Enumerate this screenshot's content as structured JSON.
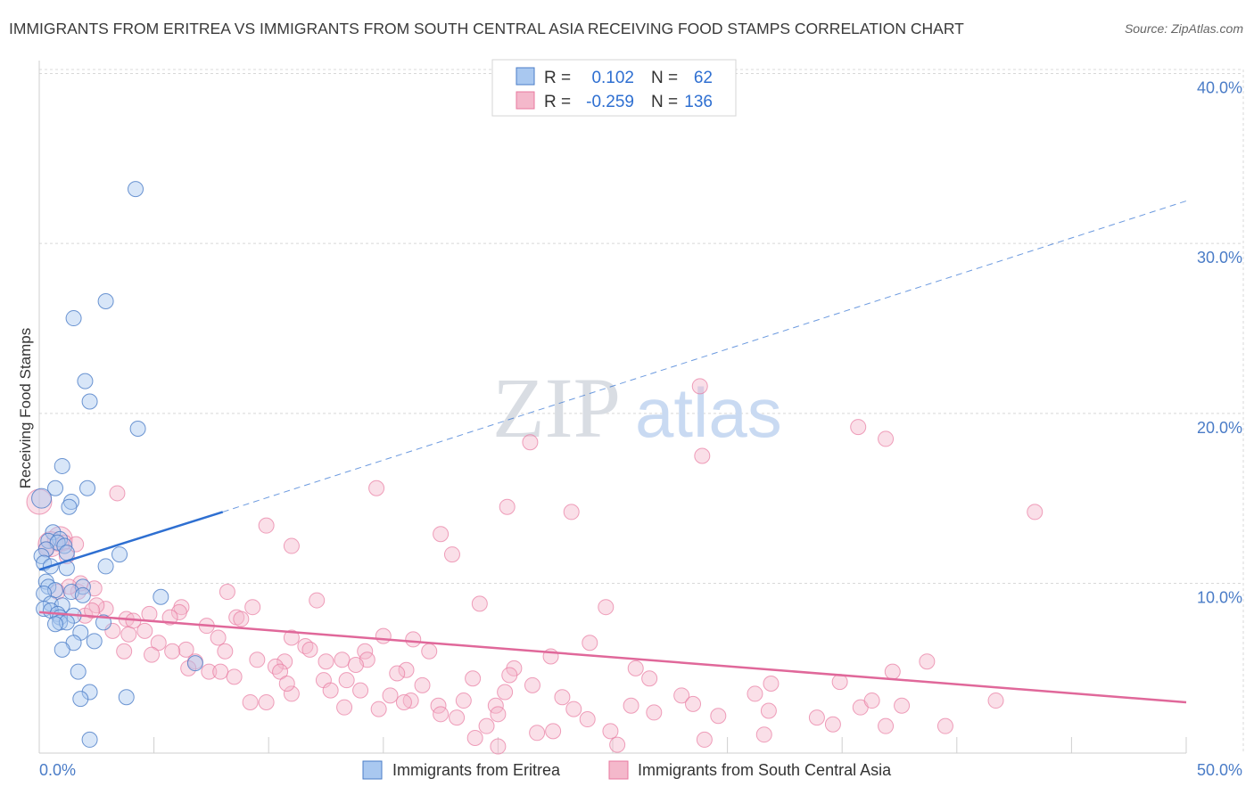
{
  "title": "IMMIGRANTS FROM ERITREA VS IMMIGRANTS FROM SOUTH CENTRAL ASIA RECEIVING FOOD STAMPS CORRELATION CHART",
  "source": "Source: ZipAtlas.com",
  "watermark": {
    "zip": "ZIP",
    "atlas": "atlas"
  },
  "colors": {
    "blue": "#4a7cc7",
    "blue_fill": "#a9c8f0",
    "blue_line": "#2e6fd1",
    "pink": "#e8799f",
    "pink_fill": "#f4b8cb",
    "pink_line": "#e0689a",
    "grid": "#d8d8d8"
  },
  "legend": {
    "r_label": "R =",
    "n_label": "N =",
    "series1": {
      "r": "0.102",
      "n": "62"
    },
    "series2": {
      "r": "-0.259",
      "n": "136"
    }
  },
  "chart_data": {
    "type": "scatter",
    "title": "IMMIGRANTS FROM ERITREA VS IMMIGRANTS FROM SOUTH CENTRAL ASIA RECEIVING FOOD STAMPS CORRELATION CHART",
    "xlabel": "",
    "ylabel": "Receiving Food Stamps",
    "xlim": [
      0,
      50
    ],
    "ylim": [
      0,
      42
    ],
    "x_tick_labels": [
      "0.0%",
      "50.0%"
    ],
    "y_ticks": [
      10,
      20,
      30,
      40
    ],
    "y_tick_labels": [
      "10.0%",
      "20.0%",
      "30.0%",
      "40.0%"
    ],
    "legend_position": "bottom",
    "series": [
      {
        "name": "Immigrants from Eritrea",
        "r": 0.102,
        "n": 62,
        "trend": {
          "x0": 0,
          "y0": 10.8,
          "x1": 8,
          "y1": 14.2,
          "dash_x1": 50,
          "dash_y1": 32.5
        },
        "points": [
          [
            4.2,
            33.2
          ],
          [
            2.9,
            26.6
          ],
          [
            1.5,
            25.6
          ],
          [
            2.0,
            21.9
          ],
          [
            2.2,
            20.7
          ],
          [
            4.3,
            19.1
          ],
          [
            1.0,
            16.9
          ],
          [
            0.7,
            15.6
          ],
          [
            2.1,
            15.6
          ],
          [
            1.4,
            14.8
          ],
          [
            1.3,
            14.5
          ],
          [
            0.1,
            15.0
          ],
          [
            0.6,
            13.0
          ],
          [
            0.9,
            12.6
          ],
          [
            0.4,
            12.5
          ],
          [
            0.8,
            12.4
          ],
          [
            1.1,
            12.2
          ],
          [
            0.3,
            12.0
          ],
          [
            1.2,
            11.8
          ],
          [
            3.5,
            11.7
          ],
          [
            0.1,
            11.6
          ],
          [
            0.2,
            11.2
          ],
          [
            0.5,
            11.0
          ],
          [
            2.9,
            11.0
          ],
          [
            1.2,
            10.9
          ],
          [
            0.3,
            10.1
          ],
          [
            0.4,
            9.8
          ],
          [
            1.9,
            9.8
          ],
          [
            0.7,
            9.6
          ],
          [
            1.4,
            9.5
          ],
          [
            0.2,
            9.4
          ],
          [
            1.9,
            9.3
          ],
          [
            5.3,
            9.2
          ],
          [
            0.5,
            8.8
          ],
          [
            1.0,
            8.7
          ],
          [
            0.2,
            8.5
          ],
          [
            0.5,
            8.4
          ],
          [
            0.8,
            8.2
          ],
          [
            1.5,
            8.1
          ],
          [
            0.9,
            8.0
          ],
          [
            0.9,
            7.7
          ],
          [
            1.2,
            7.7
          ],
          [
            0.7,
            7.6
          ],
          [
            2.8,
            7.7
          ],
          [
            1.8,
            7.1
          ],
          [
            1.5,
            6.5
          ],
          [
            2.4,
            6.6
          ],
          [
            1.0,
            6.1
          ],
          [
            6.8,
            5.3
          ],
          [
            1.7,
            4.8
          ],
          [
            2.2,
            3.6
          ],
          [
            3.8,
            3.3
          ],
          [
            1.8,
            3.2
          ],
          [
            2.2,
            0.8
          ]
        ]
      },
      {
        "name": "Immigrants from South Central Asia",
        "r": -0.259,
        "n": 136,
        "trend": {
          "x0": 0,
          "y0": 8.3,
          "x1": 50,
          "y1": 3.0
        },
        "points": [
          [
            28.8,
            21.6
          ],
          [
            35.7,
            19.2
          ],
          [
            36.9,
            18.5
          ],
          [
            21.4,
            18.3
          ],
          [
            28.9,
            17.5
          ],
          [
            14.7,
            15.6
          ],
          [
            3.4,
            15.3
          ],
          [
            20.4,
            14.5
          ],
          [
            23.2,
            14.2
          ],
          [
            43.4,
            14.2
          ],
          [
            9.9,
            13.4
          ],
          [
            17.5,
            12.9
          ],
          [
            0.9,
            12.6
          ],
          [
            1.1,
            12.4
          ],
          [
            1.6,
            12.3
          ],
          [
            1.2,
            11.6
          ],
          [
            0.5,
            12.3
          ],
          [
            11.0,
            12.2
          ],
          [
            18.0,
            11.7
          ],
          [
            1.7,
            9.5
          ],
          [
            2.4,
            9.7
          ],
          [
            8.2,
            9.5
          ],
          [
            1.8,
            10.0
          ],
          [
            12.1,
            9.0
          ],
          [
            19.2,
            8.8
          ],
          [
            24.7,
            8.6
          ],
          [
            6.2,
            8.6
          ],
          [
            9.3,
            8.6
          ],
          [
            2.9,
            8.5
          ],
          [
            6.1,
            8.3
          ],
          [
            2.0,
            8.1
          ],
          [
            3.8,
            7.9
          ],
          [
            4.1,
            7.8
          ],
          [
            5.7,
            8.0
          ],
          [
            8.6,
            8.0
          ],
          [
            7.3,
            7.5
          ],
          [
            3.2,
            7.2
          ],
          [
            4.6,
            7.2
          ],
          [
            7.8,
            6.8
          ],
          [
            15.0,
            6.9
          ],
          [
            11.0,
            6.8
          ],
          [
            16.3,
            6.7
          ],
          [
            5.2,
            6.5
          ],
          [
            24.0,
            6.5
          ],
          [
            11.6,
            6.3
          ],
          [
            3.7,
            6.0
          ],
          [
            6.4,
            6.1
          ],
          [
            5.8,
            6.0
          ],
          [
            8.1,
            6.0
          ],
          [
            11.8,
            6.1
          ],
          [
            14.2,
            6.0
          ],
          [
            17.0,
            6.0
          ],
          [
            9.5,
            5.5
          ],
          [
            13.2,
            5.5
          ],
          [
            14.3,
            5.5
          ],
          [
            4.9,
            5.8
          ],
          [
            6.8,
            5.4
          ],
          [
            10.7,
            5.4
          ],
          [
            22.3,
            5.7
          ],
          [
            10.3,
            5.1
          ],
          [
            12.5,
            5.4
          ],
          [
            13.8,
            5.2
          ],
          [
            7.4,
            4.8
          ],
          [
            7.9,
            4.8
          ],
          [
            10.5,
            4.8
          ],
          [
            16.0,
            4.9
          ],
          [
            8.5,
            4.5
          ],
          [
            26.0,
            5.0
          ],
          [
            37.2,
            4.8
          ],
          [
            15.6,
            4.7
          ],
          [
            20.7,
            5.0
          ],
          [
            20.5,
            4.6
          ],
          [
            12.4,
            4.3
          ],
          [
            13.4,
            4.3
          ],
          [
            18.9,
            4.4
          ],
          [
            31.9,
            4.1
          ],
          [
            16.7,
            4.0
          ],
          [
            21.5,
            4.0
          ],
          [
            26.6,
            4.4
          ],
          [
            34.9,
            4.2
          ],
          [
            38.7,
            5.4
          ],
          [
            12.7,
            3.7
          ],
          [
            14.0,
            3.7
          ],
          [
            20.3,
            3.6
          ],
          [
            11.0,
            3.5
          ],
          [
            15.3,
            3.4
          ],
          [
            28.0,
            3.4
          ],
          [
            22.8,
            3.3
          ],
          [
            31.2,
            3.5
          ],
          [
            16.2,
            3.1
          ],
          [
            9.9,
            3.0
          ],
          [
            25.8,
            2.8
          ],
          [
            18.5,
            3.1
          ],
          [
            17.4,
            2.8
          ],
          [
            19.9,
            2.8
          ],
          [
            23.3,
            2.6
          ],
          [
            14.8,
            2.6
          ],
          [
            13.3,
            2.7
          ],
          [
            31.8,
            2.5
          ],
          [
            35.8,
            2.7
          ],
          [
            36.3,
            3.1
          ],
          [
            37.6,
            2.8
          ],
          [
            41.7,
            3.1
          ],
          [
            17.5,
            2.3
          ],
          [
            20.0,
            2.3
          ],
          [
            29.6,
            2.2
          ],
          [
            33.9,
            2.1
          ],
          [
            23.9,
            2.0
          ],
          [
            34.6,
            1.7
          ],
          [
            19.5,
            1.6
          ],
          [
            22.4,
            1.3
          ],
          [
            36.9,
            1.6
          ],
          [
            39.5,
            1.6
          ],
          [
            21.7,
            1.2
          ],
          [
            24.9,
            1.3
          ],
          [
            31.6,
            1.1
          ],
          [
            19.0,
            0.9
          ],
          [
            29.0,
            0.8
          ],
          [
            20.0,
            0.4
          ],
          [
            25.2,
            0.5
          ],
          [
            0.0,
            14.8
          ],
          [
            0.3,
            12.0
          ],
          [
            0.8,
            9.5
          ],
          [
            2.5,
            8.7
          ],
          [
            3.9,
            7.0
          ],
          [
            4.8,
            8.2
          ],
          [
            1.3,
            9.8
          ],
          [
            2.3,
            8.4
          ],
          [
            6.5,
            5.0
          ],
          [
            8.8,
            7.9
          ],
          [
            9.2,
            3.0
          ],
          [
            10.8,
            4.1
          ],
          [
            15.9,
            3.0
          ],
          [
            18.2,
            2.1
          ],
          [
            26.8,
            2.4
          ],
          [
            28.5,
            2.9
          ]
        ]
      }
    ]
  },
  "bottom_legend": {
    "series1": "Immigrants from Eritrea",
    "series2": "Immigrants from South Central Asia"
  }
}
